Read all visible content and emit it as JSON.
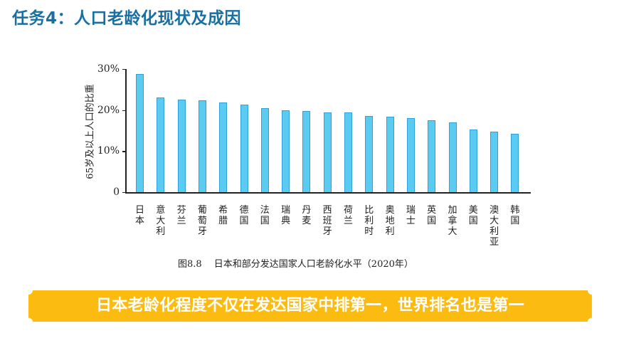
{
  "header": {
    "title": "任务4：人口老龄化现状及成因"
  },
  "chart_data": {
    "type": "bar",
    "title": "图8.8　日本和部分发达国家人口老龄化水平（2020年）",
    "xlabel": "",
    "ylabel": "65岁及以上人口的比重",
    "ylim": [
      0,
      30
    ],
    "yticks": [
      "0",
      "10%",
      "20%",
      "30%"
    ],
    "categories": [
      "日本",
      "意大利",
      "芬兰",
      "葡萄牙",
      "希腊",
      "德国",
      "法国",
      "瑞典",
      "丹麦",
      "西班牙",
      "荷兰",
      "比利时",
      "奥地利",
      "瑞士",
      "英国",
      "加拿大",
      "美国",
      "澳大利亚",
      "韩国"
    ],
    "values": [
      28.8,
      23.0,
      22.5,
      22.3,
      21.9,
      21.3,
      20.4,
      19.9,
      19.8,
      19.4,
      19.4,
      18.6,
      18.4,
      18.0,
      17.5,
      17.0,
      15.3,
      14.7,
      14.2
    ],
    "colors": {
      "bar_fill": "#5ccbf2",
      "bar_edge": "#2ea2d8"
    },
    "grid": false,
    "legend": null
  },
  "caption": "图8.8　 日本和部分发达国家人口老龄化水平（2020年）",
  "banner": {
    "text": "日本老龄化程度不仅在发达国家中排第一，世界排名也是第一",
    "color": "#fbbb10"
  }
}
